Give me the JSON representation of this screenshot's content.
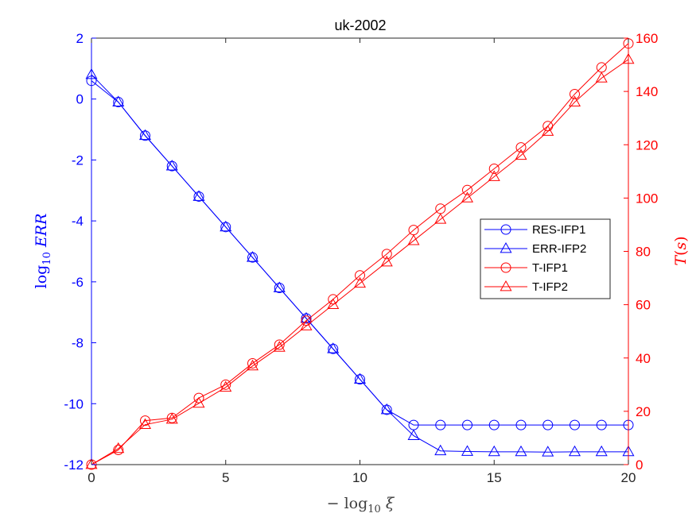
{
  "chart_data": {
    "type": "line",
    "title": "uk-2002",
    "xlabel": "− log₁₀ ξ",
    "ylabel_left": "log₁₀ ERR",
    "ylabel_right": "T(s)",
    "xlim": [
      0,
      20
    ],
    "ylim_left": [
      -12,
      2
    ],
    "ylim_right": [
      0,
      160
    ],
    "x_ticks": [
      0,
      5,
      10,
      15,
      20
    ],
    "y_ticks_left": [
      2,
      0,
      -2,
      -4,
      -6,
      -8,
      -10,
      -12
    ],
    "y_ticks_right": [
      160,
      140,
      120,
      100,
      80,
      60,
      40,
      20,
      0
    ],
    "grid": false,
    "legend_position": "center-right",
    "colors": {
      "left_axis": "#0000ff",
      "right_axis": "#ff0000",
      "axes_box": "#262626"
    },
    "x": [
      0,
      1,
      2,
      3,
      4,
      5,
      6,
      7,
      8,
      9,
      10,
      11,
      12,
      13,
      14,
      15,
      16,
      17,
      18,
      19,
      20
    ],
    "series": [
      {
        "name": "RES-IFP1",
        "axis": "left",
        "marker": "circle",
        "color": "#0000ff",
        "values": [
          0.6,
          -0.1,
          -1.2,
          -2.2,
          -3.2,
          -4.2,
          -5.2,
          -6.2,
          -7.2,
          -8.2,
          -9.2,
          -10.2,
          -10.7,
          -10.7,
          -10.7,
          -10.7,
          -10.7,
          -10.7,
          -10.7,
          -10.7,
          -10.7
        ]
      },
      {
        "name": "ERR-IFP2",
        "axis": "left",
        "marker": "triangle",
        "color": "#0000ff",
        "values": [
          0.8,
          -0.1,
          -1.2,
          -2.2,
          -3.2,
          -4.2,
          -5.2,
          -6.2,
          -7.2,
          -8.2,
          -9.2,
          -10.2,
          -11.05,
          -11.55,
          -11.57,
          -11.58,
          -11.58,
          -11.59,
          -11.58,
          -11.58,
          -11.58
        ]
      },
      {
        "name": "T-IFP1",
        "axis": "right",
        "marker": "circle",
        "color": "#ff0000",
        "values": [
          0,
          5.5,
          16.5,
          17.5,
          25,
          30,
          38,
          45,
          54,
          62,
          71,
          79,
          88,
          96,
          103,
          111,
          119,
          127,
          139,
          149,
          158
        ]
      },
      {
        "name": "T-IFP2",
        "axis": "right",
        "marker": "triangle",
        "color": "#ff0000",
        "values": [
          0,
          6,
          15,
          17,
          23,
          29,
          37,
          44,
          52,
          60,
          68,
          76,
          84,
          92,
          100,
          108,
          116,
          125,
          136,
          145,
          152
        ]
      }
    ]
  }
}
